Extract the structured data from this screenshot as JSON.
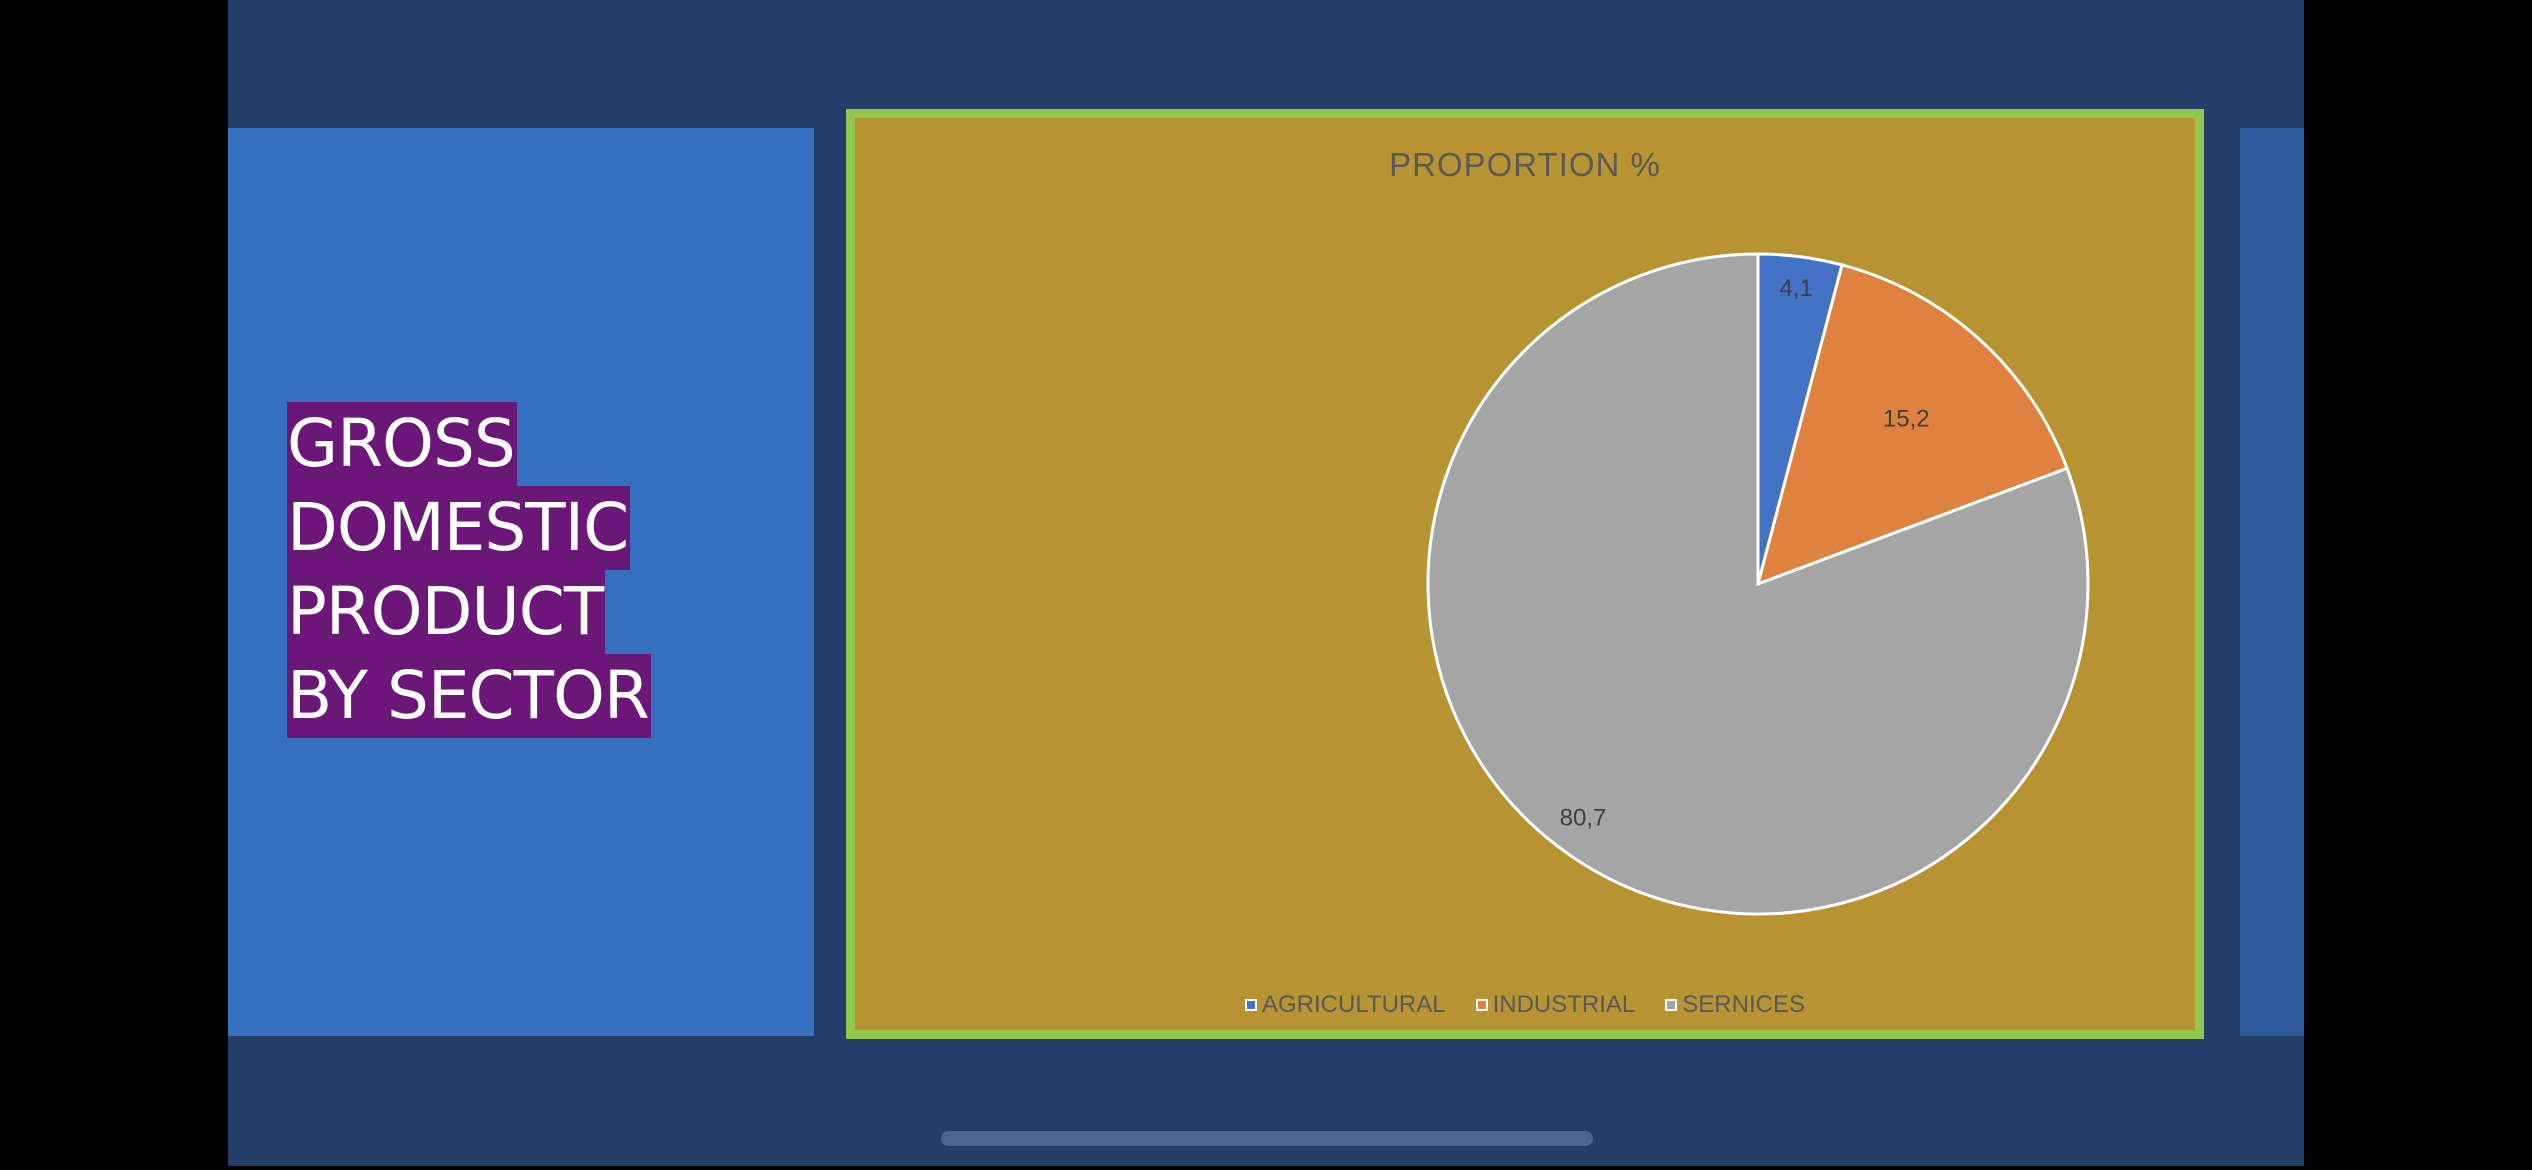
{
  "slide": {
    "title_lines": [
      "GROSS",
      "DOMESTIC",
      "PRODUCT",
      "BY SECTOR"
    ]
  },
  "colors": {
    "background": "#233f69",
    "left_panel": "#356fc0",
    "title_highlight": "#6b1777",
    "chart_background": "#b79332",
    "chart_border": "#92c74e"
  },
  "chart_data": {
    "type": "pie",
    "title": "PROPORTION %",
    "categories": [
      "AGRICULTURAL",
      "INDUSTRIAL",
      "SERNICES"
    ],
    "values": [
      4.1,
      15.2,
      80.7
    ],
    "value_labels": [
      "4,1",
      "15,2",
      "80,7"
    ],
    "colors": [
      "#4472c4",
      "#e0823f",
      "#a5a5a5"
    ],
    "legend_position": "bottom"
  }
}
